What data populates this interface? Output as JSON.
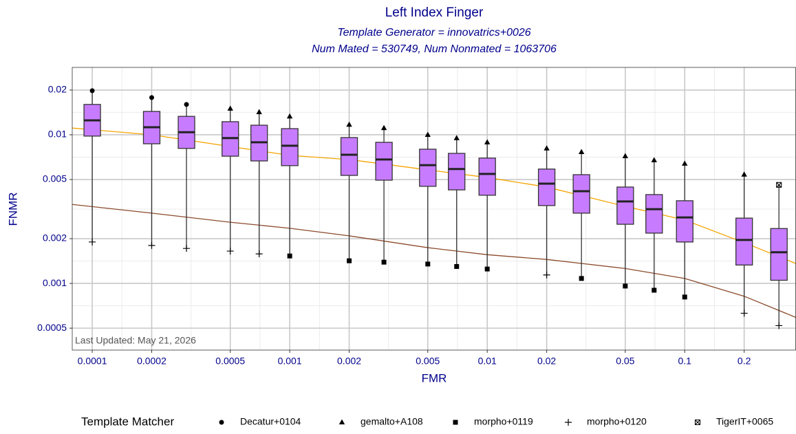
{
  "chart_data": {
    "type": "box",
    "title": "Left Index Finger",
    "subtitle": [
      "Template Generator = innovatrics+0026",
      "Num Mated = 530749, Num Nonmated = 1063706"
    ],
    "x_label": "FMR",
    "y_label": "FNMR",
    "annotation": "Last Updated: May 21, 2026",
    "xscale": "log",
    "yscale": "log",
    "xlim": [
      7.92e-05,
      0.366
    ],
    "ylim": [
      0.000356,
      0.0284
    ],
    "xticks": [
      0.0001,
      0.0002,
      0.0005,
      0.001,
      0.002,
      0.005,
      0.01,
      0.02,
      0.05,
      0.1,
      0.2
    ],
    "yticks": [
      0.0005,
      0.001,
      0.002,
      0.005,
      0.01,
      0.02
    ],
    "grid": true,
    "legend": "bottom",
    "legend_title": "Template Matcher",
    "box_color": "#c77cff",
    "boxes": {
      "x": [
        0.0001,
        0.0002,
        0.0003,
        0.0005,
        0.0007,
        0.001,
        0.002,
        0.003,
        0.005,
        0.007,
        0.01,
        0.02,
        0.03,
        0.05,
        0.07,
        0.1,
        0.2,
        0.3
      ],
      "q1": [
        0.0098,
        0.0087,
        0.0081,
        0.00718,
        0.00667,
        0.0062,
        0.00533,
        0.00495,
        0.0045,
        0.00426,
        0.00392,
        0.00334,
        0.00297,
        0.0025,
        0.00218,
        0.0019,
        0.00133,
        0.00105
      ],
      "median": [
        0.0125,
        0.01124,
        0.0104,
        0.0095,
        0.0089,
        0.00844,
        0.00734,
        0.00682,
        0.00625,
        0.00588,
        0.00545,
        0.00469,
        0.00417,
        0.00356,
        0.00316,
        0.00278,
        0.00196,
        0.00162
      ],
      "q3": [
        0.016,
        0.01436,
        0.0133,
        0.01225,
        0.0116,
        0.011,
        0.00958,
        0.0089,
        0.008,
        0.0075,
        0.00697,
        0.00588,
        0.00539,
        0.00445,
        0.00396,
        0.0036,
        0.00275,
        0.00234
      ]
    },
    "points": [
      {
        "name": "Decatur+0104",
        "shape": "circle",
        "color": "#000000",
        "x": [
          0.0001,
          0.0002,
          0.0003
        ],
        "y": [
          0.0198,
          0.0178,
          0.016
        ]
      },
      {
        "name": "gemalto+A108",
        "shape": "triangle",
        "color": "#000000",
        "x": [
          0.0005,
          0.0007,
          0.001,
          0.002,
          0.003,
          0.005,
          0.007,
          0.01,
          0.02,
          0.03,
          0.05,
          0.07,
          0.1,
          0.2
        ],
        "y": [
          0.015,
          0.0142,
          0.0133,
          0.0117,
          0.0111,
          0.01,
          0.0095,
          0.0089,
          0.0081,
          0.00766,
          0.00718,
          0.00675,
          0.0064,
          0.0054
        ]
      },
      {
        "name": "morpho+0119",
        "shape": "square",
        "color": "#000000",
        "x": [
          0.001,
          0.002,
          0.003,
          0.005,
          0.007,
          0.01,
          0.03,
          0.05,
          0.07,
          0.1
        ],
        "y": [
          0.00153,
          0.00142,
          0.00139,
          0.00135,
          0.0013,
          0.00125,
          0.00108,
          0.00096,
          0.0009,
          0.00081
        ]
      },
      {
        "name": "morpho+0120",
        "shape": "plus",
        "color": "#000000",
        "x": [
          0.0001,
          0.0002,
          0.0003,
          0.0005,
          0.0007,
          0.02,
          0.2,
          0.3
        ],
        "y": [
          0.0019,
          0.0018,
          0.00172,
          0.00165,
          0.00158,
          0.00114,
          0.00063,
          0.00052
        ]
      },
      {
        "name": "TigerIT+0065",
        "shape": "boxcross",
        "color": "#000000",
        "x": [
          0.3
        ],
        "y": [
          0.0046
        ]
      }
    ],
    "lines": [
      {
        "color": "#f5a300",
        "x": [
          7.92e-05,
          0.0002,
          0.0005,
          0.001,
          0.002,
          0.005,
          0.01,
          0.02,
          0.05,
          0.1,
          0.2,
          0.366
        ],
        "y": [
          0.0111,
          0.01,
          0.00834,
          0.00727,
          0.00681,
          0.00581,
          0.00516,
          0.00445,
          0.0033,
          0.00267,
          0.00188,
          0.00136
        ]
      },
      {
        "color": "#8b4a2b",
        "x": [
          7.92e-05,
          0.0002,
          0.0005,
          0.001,
          0.002,
          0.005,
          0.01,
          0.02,
          0.05,
          0.1,
          0.2,
          0.366
        ],
        "y": [
          0.0034,
          0.00297,
          0.00258,
          0.00235,
          0.00209,
          0.00174,
          0.00156,
          0.00145,
          0.00126,
          0.00108,
          0.00082,
          0.00059
        ]
      }
    ]
  }
}
